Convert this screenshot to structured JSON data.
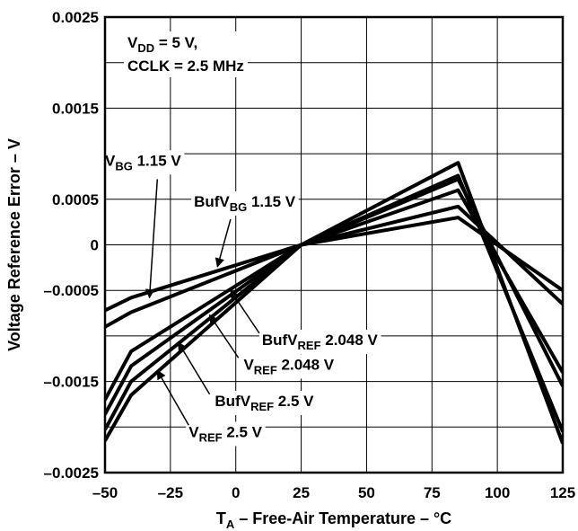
{
  "chart_data": {
    "type": "line",
    "title": "",
    "xlabel": {
      "main": "T",
      "sub": "A",
      "rest": " – Free-Air Temperature – °C"
    },
    "ylabel": "Voltage Reference Error – V",
    "xlim": [
      -50,
      125
    ],
    "ylim": [
      -0.0025,
      0.0025
    ],
    "grid": true,
    "x_ticks": [
      {
        "value": -50,
        "label": "–50"
      },
      {
        "value": -25,
        "label": "–25"
      },
      {
        "value": 0,
        "label": "0"
      },
      {
        "value": 25,
        "label": "25"
      },
      {
        "value": 50,
        "label": "50"
      },
      {
        "value": 75,
        "label": "75"
      },
      {
        "value": 100,
        "label": "100"
      },
      {
        "value": 125,
        "label": "125"
      }
    ],
    "y_ticks": [
      {
        "value": 0.0025,
        "label": "0.0025"
      },
      {
        "value": 0.0015,
        "label": "0.0015"
      },
      {
        "value": 0.0005,
        "label": "0.0005"
      },
      {
        "value": 0,
        "label": "0"
      },
      {
        "value": -0.0005,
        "label": "–0.0005"
      },
      {
        "value": -0.0015,
        "label": "–0.0015"
      },
      {
        "value": -0.0025,
        "label": "–0.0025"
      }
    ],
    "y_extra_gridlines": [
      0.002,
      0.001,
      -0.001,
      -0.002
    ],
    "x": [
      -50,
      -40,
      25,
      85,
      125
    ],
    "series": [
      {
        "values": [
          -0.00072,
          -0.00058,
          0,
          0.0003,
          -0.0005
        ]
      },
      {
        "values": [
          -0.0009,
          -0.00074,
          0,
          0.00042,
          -0.00065
        ]
      },
      {
        "values": [
          -0.0017,
          -0.00117,
          0,
          0.0006,
          -0.0014
        ]
      },
      {
        "values": [
          -0.00186,
          -0.00133,
          0,
          0.00072,
          -0.00155
        ]
      },
      {
        "values": [
          -0.00203,
          -0.0015,
          0,
          0.00076,
          -0.00205
        ]
      },
      {
        "values": [
          -0.00215,
          -0.00165,
          0,
          0.0009,
          -0.00218
        ]
      }
    ],
    "annotations": {
      "conditions": {
        "line1_main": "V",
        "line1_sub": "DD",
        "line1_rest": " = 5 V,",
        "line2": "CCLK = 2.5 MHz"
      },
      "labels": [
        {
          "main": "V",
          "sub": "BG",
          "rest": " 1.15 V",
          "x": -50,
          "y": 0.00087,
          "arrow_to": {
            "x": -33,
            "y": -0.00058
          },
          "arrow_from": {
            "x": -30,
            "y": 0.00072
          }
        },
        {
          "main": "BufV",
          "sub": "BG",
          "rest": " 1.15 V",
          "x": -16,
          "y": 0.00042,
          "arrow_to": {
            "x": -7,
            "y": -0.00024
          },
          "arrow_from": {
            "x": -2,
            "y": 0.00028
          }
        },
        {
          "main": "BufV",
          "sub": "REF",
          "rest": " 2.048 V",
          "x": 10,
          "y": -0.0011,
          "arrow_to": {
            "x": -2,
            "y": -0.0005
          },
          "arrow_from": {
            "x": 9,
            "y": -0.00097
          }
        },
        {
          "main": "V",
          "sub": "REF",
          "rest": " 2.048 V",
          "x": 3,
          "y": -0.00137,
          "arrow_to": {
            "x": -10,
            "y": -0.00077
          },
          "arrow_from": {
            "x": 1,
            "y": -0.00124
          }
        },
        {
          "main": "BufV",
          "sub": "REF",
          "rest": " 2.5 V",
          "x": -8,
          "y": -0.00177,
          "arrow_to": {
            "x": -22,
            "y": -0.00107
          },
          "arrow_from": {
            "x": -10,
            "y": -0.00164
          }
        },
        {
          "main": "V",
          "sub": "REF",
          "rest": " 2.5 V",
          "x": -18,
          "y": -0.00211,
          "arrow_to": {
            "x": -30,
            "y": -0.00138
          },
          "arrow_from": {
            "x": -18,
            "y": -0.00198
          }
        }
      ]
    }
  }
}
